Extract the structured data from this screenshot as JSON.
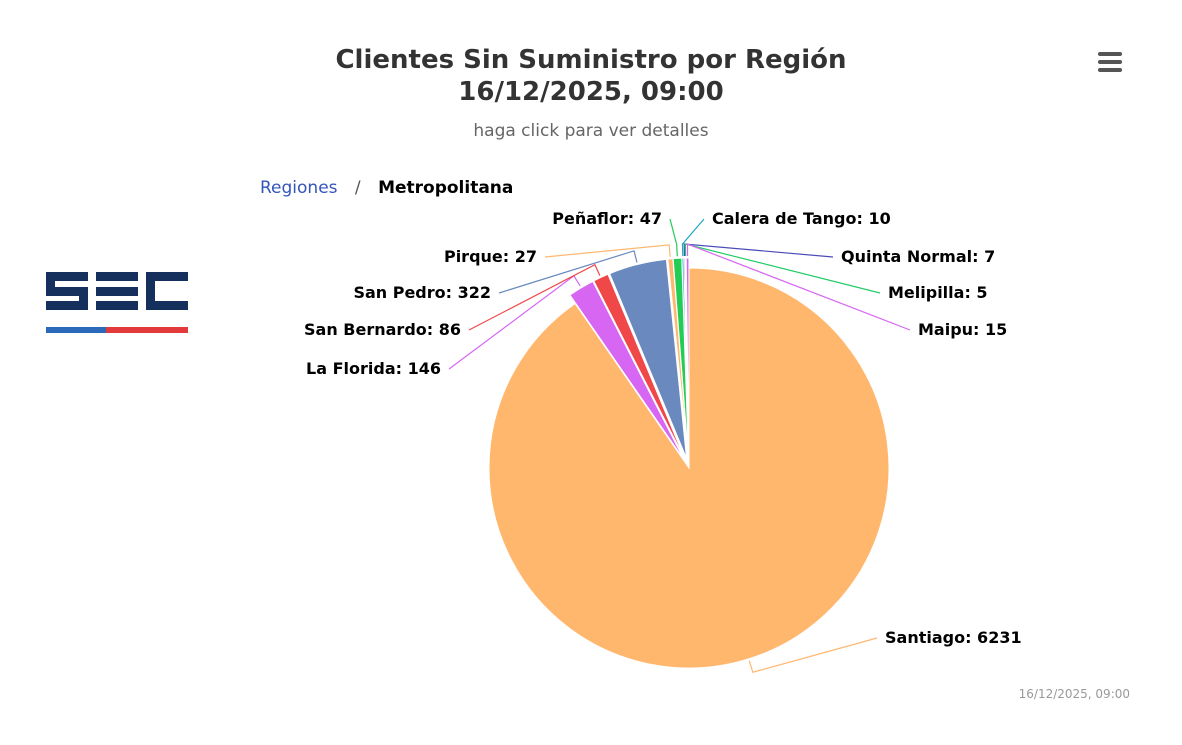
{
  "chart_data": {
    "type": "pie",
    "title_line1": "Clientes Sin Suministro por Región",
    "title_line2": "16/12/2025, 09:00",
    "subtitle": "haga click para ver detalles",
    "slices": [
      {
        "name": "Santiago",
        "value": 6231,
        "color": "#ffb76e"
      },
      {
        "name": "La Florida",
        "value": 146,
        "color": "#d767f2"
      },
      {
        "name": "San Bernardo",
        "value": 86,
        "color": "#f04848"
      },
      {
        "name": "San Pedro",
        "value": 322,
        "color": "#6a89bf"
      },
      {
        "name": "Pirque",
        "value": 27,
        "color": "#ffb76e"
      },
      {
        "name": "Peñaflor",
        "value": 47,
        "color": "#22cc55"
      },
      {
        "name": "Calera de Tango",
        "value": 10,
        "color": "#20a6c4"
      },
      {
        "name": "Quinta Normal",
        "value": 7,
        "color": "#4a4ab8"
      },
      {
        "name": "Melipilla",
        "value": 5,
        "color": "#22cc66"
      },
      {
        "name": "Maipu",
        "value": 15,
        "color": "#d767f2"
      }
    ],
    "legend": "none"
  },
  "breadcrumb": {
    "root": "Regiones",
    "separator": "/",
    "current": "Metropolitana"
  },
  "menu": {
    "icon": "hamburger-menu-icon"
  },
  "logo": {
    "text": "SEC",
    "color": "#15305c",
    "stripe_colors": [
      "#2a6ab8",
      "#e23a3a"
    ]
  },
  "credits": "16/12/2025, 09:00"
}
